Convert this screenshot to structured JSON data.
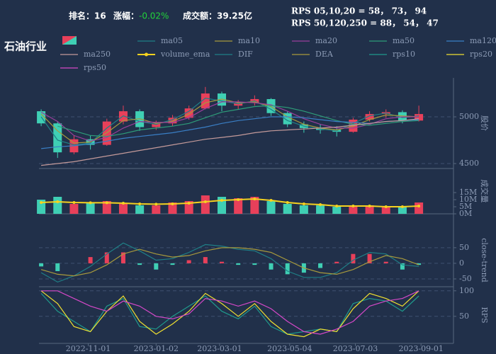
{
  "header": {
    "title": "石油行业",
    "rank": "排名：16",
    "change_label": "涨幅：",
    "change": "-0.02%",
    "turnover": "成交额：39.25亿",
    "rps_short": "RPS 05,10,20 = 58， 73， 94",
    "rps_long": "RPS 50,120,250 = 88， 54， 47"
  },
  "chart_data": [
    {
      "type": "candlestick",
      "x": [
        "2022-09-19",
        "2022-10-04",
        "2022-10-19",
        "2022-11-03",
        "2022-11-18",
        "2022-12-03",
        "2022-12-18",
        "2023-01-02",
        "2023-01-17",
        "2023-02-01",
        "2023-02-16",
        "2023-03-03",
        "2023-03-18",
        "2023-04-02",
        "2023-04-17",
        "2023-05-02",
        "2023-05-17",
        "2023-06-01",
        "2023-06-16",
        "2023-07-01",
        "2023-07-16",
        "2023-07-31",
        "2023-08-15",
        "2023-08-30"
      ],
      "open": [
        5060,
        4930,
        4620,
        4760,
        4700,
        4950,
        5060,
        4890,
        4930,
        4990,
        5090,
        5250,
        5120,
        5150,
        5190,
        5040,
        4920,
        4880,
        4860,
        4840,
        4970,
        5030,
        5050,
        4960
      ],
      "high": [
        5080,
        4950,
        4800,
        4800,
        4980,
        5120,
        5080,
        4960,
        5020,
        5120,
        5320,
        5270,
        5180,
        5230,
        5200,
        5060,
        4950,
        4920,
        4900,
        4990,
        5060,
        5080,
        5070,
        5120
      ],
      "low": [
        4900,
        4560,
        4600,
        4650,
        4690,
        4920,
        4850,
        4860,
        4900,
        4970,
        5080,
        5060,
        5080,
        5120,
        5010,
        4890,
        4830,
        4820,
        4790,
        4830,
        4950,
        4990,
        4930,
        4950
      ],
      "close": [
        4930,
        4620,
        4760,
        4700,
        4950,
        5060,
        4890,
        4930,
        4990,
        5090,
        5250,
        5120,
        5150,
        5190,
        5040,
        4920,
        4880,
        4860,
        4840,
        4970,
        5030,
        5050,
        4960,
        5030
      ],
      "up_color": "#e8405a",
      "down_color": "#3fcfb4",
      "series": [
        {
          "name": "ma05",
          "color": "#1f7f86",
          "values": [
            5000,
            4750,
            4700,
            4720,
            4880,
            5010,
            4950,
            4920,
            4970,
            5060,
            5200,
            5170,
            5140,
            5170,
            5080,
            4960,
            4900,
            4870,
            4850,
            4930,
            5010,
            5040,
            4990,
            5010
          ]
        },
        {
          "name": "ma10",
          "color": "#a89a3c",
          "values": [
            5030,
            4850,
            4720,
            4730,
            4830,
            4960,
            4980,
            4930,
            4950,
            5030,
            5150,
            5190,
            5150,
            5160,
            5110,
            5000,
            4920,
            4880,
            4860,
            4900,
            4970,
            5020,
            5010,
            5000
          ]
        },
        {
          "name": "ma20",
          "color": "#9a3f9c",
          "values": [
            5050,
            4950,
            4800,
            4740,
            4780,
            4880,
            4950,
            4940,
            4940,
            4990,
            5090,
            5160,
            5160,
            5150,
            5130,
            5060,
            4980,
            4920,
            4880,
            4880,
            4920,
            4980,
            5000,
            5000
          ]
        },
        {
          "name": "ma50",
          "color": "#2e9d79",
          "values": [
            null,
            4900,
            4850,
            4800,
            4790,
            4820,
            4860,
            4880,
            4900,
            4930,
            4990,
            5050,
            5080,
            5110,
            5120,
            5100,
            5060,
            5010,
            4960,
            4920,
            4910,
            4930,
            4950,
            4960
          ]
        },
        {
          "name": "ma120",
          "color": "#3a7fc6",
          "values": [
            4660,
            4680,
            4690,
            4710,
            4740,
            4770,
            4790,
            4810,
            4830,
            4860,
            4890,
            4930,
            4960,
            4980,
            5000,
            5000,
            4990,
            4970,
            4950,
            4940,
            4930,
            4950,
            4960,
            4970
          ]
        },
        {
          "name": "ma250",
          "color": "#c49a9a",
          "values": [
            4480,
            4500,
            4520,
            4550,
            4580,
            4610,
            4640,
            4670,
            4700,
            4730,
            4760,
            4780,
            4800,
            4830,
            4850,
            4860,
            4870,
            4880,
            4890,
            4910,
            4930,
            4950,
            4960,
            4980
          ]
        }
      ],
      "xlim": [
        "2022-09-17",
        "2023-09-08"
      ],
      "ylim": [
        4447,
        5417
      ],
      "yticks": [
        4500,
        5000
      ],
      "ylabel": "股价",
      "grid": true
    },
    {
      "type": "bar",
      "x": [
        "2022-09-19",
        "2022-10-04",
        "2022-10-19",
        "2022-11-03",
        "2022-11-18",
        "2022-12-03",
        "2022-12-18",
        "2023-01-02",
        "2023-01-17",
        "2023-02-01",
        "2023-02-16",
        "2023-03-03",
        "2023-03-18",
        "2023-04-02",
        "2023-04-17",
        "2023-05-02",
        "2023-05-17",
        "2023-06-01",
        "2023-06-16",
        "2023-07-01",
        "2023-07-16",
        "2023-07-31",
        "2023-08-15",
        "2023-08-30"
      ],
      "values": [
        10,
        12,
        7,
        8,
        9,
        7,
        6,
        6,
        8,
        9,
        13,
        12,
        11,
        12,
        9,
        7,
        6,
        6,
        5,
        6,
        6,
        5,
        5,
        8
      ],
      "series": [
        {
          "name": "volume_ema",
          "color": "#f5d21f",
          "values": [
            8,
            8.5,
            8,
            7.8,
            7.8,
            7.5,
            7,
            6.8,
            7,
            7.5,
            8.5,
            9.5,
            10,
            10.5,
            9.5,
            8,
            7,
            6.5,
            5.5,
            5.5,
            5.5,
            5,
            5,
            5.5
          ]
        }
      ],
      "xlim": [
        "2022-09-17",
        "2023-09-08"
      ],
      "ylim": [
        0,
        32
      ],
      "yticks": [
        {
          "value": 0,
          "label": "0M"
        },
        {
          "value": 5,
          "label": "5M"
        },
        {
          "value": 10,
          "label": "10M"
        },
        {
          "value": 15,
          "label": "15M"
        }
      ],
      "ylabel": "成交量"
    },
    {
      "type": "line",
      "x": [
        "2022-09-19",
        "2022-10-04",
        "2022-10-19",
        "2022-11-03",
        "2022-11-18",
        "2022-12-03",
        "2022-12-18",
        "2023-01-02",
        "2023-01-17",
        "2023-02-01",
        "2023-02-16",
        "2023-03-03",
        "2023-03-18",
        "2023-04-02",
        "2023-04-17",
        "2023-05-02",
        "2023-05-17",
        "2023-06-01",
        "2023-06-16",
        "2023-07-01",
        "2023-07-16",
        "2023-07-31",
        "2023-08-15",
        "2023-08-30"
      ],
      "series": [
        {
          "name": "DIF",
          "color": "#1f7f86",
          "values": [
            -30,
            -60,
            -40,
            -10,
            30,
            65,
            40,
            10,
            15,
            35,
            60,
            55,
            45,
            40,
            15,
            -25,
            -45,
            -45,
            -30,
            10,
            35,
            30,
            -5,
            -10
          ]
        },
        {
          "name": "DEA",
          "color": "#a89a3c",
          "values": [
            -20,
            -35,
            -40,
            -30,
            -5,
            30,
            45,
            30,
            20,
            25,
            40,
            50,
            50,
            45,
            35,
            10,
            -15,
            -30,
            -35,
            -20,
            5,
            25,
            15,
            -5
          ]
        }
      ],
      "histogram": {
        "up_color": "#e8405a",
        "down_color": "#3fcfb4",
        "values": [
          -10,
          -25,
          0,
          20,
          35,
          35,
          -5,
          -20,
          -5,
          10,
          20,
          5,
          -5,
          -5,
          -20,
          -35,
          -30,
          -15,
          5,
          30,
          30,
          5,
          -20,
          -5
        ]
      },
      "xlim": [
        "2022-09-17",
        "2023-09-08"
      ],
      "ylim": [
        -75,
        95
      ],
      "yticks": [
        -50,
        0,
        50
      ],
      "ylabel": "close-trend"
    },
    {
      "type": "line",
      "x": [
        "2022-09-19",
        "2022-10-04",
        "2022-10-19",
        "2022-11-03",
        "2022-11-18",
        "2022-12-03",
        "2022-12-18",
        "2023-01-02",
        "2023-01-17",
        "2023-02-01",
        "2023-02-16",
        "2023-03-03",
        "2023-03-18",
        "2023-04-02",
        "2023-04-17",
        "2023-05-02",
        "2023-05-17",
        "2023-06-01",
        "2023-06-16",
        "2023-07-01",
        "2023-07-16",
        "2023-07-31",
        "2023-08-15",
        "2023-08-30"
      ],
      "series": [
        {
          "name": "rps10",
          "color": "#1f9a8c",
          "values": [
            95,
            60,
            40,
            20,
            70,
            85,
            30,
            25,
            50,
            70,
            90,
            60,
            45,
            70,
            30,
            15,
            20,
            25,
            20,
            75,
            85,
            80,
            60,
            90
          ]
        },
        {
          "name": "rps20",
          "color": "#f0e030",
          "values": [
            100,
            75,
            30,
            20,
            60,
            90,
            40,
            15,
            35,
            60,
            95,
            75,
            50,
            75,
            40,
            15,
            10,
            25,
            20,
            65,
            95,
            85,
            70,
            100
          ]
        },
        {
          "name": "rps50",
          "color": "#d548c8",
          "values": [
            100,
            100,
            85,
            70,
            60,
            80,
            70,
            50,
            45,
            55,
            85,
            80,
            70,
            80,
            65,
            40,
            20,
            15,
            25,
            40,
            70,
            80,
            85,
            100
          ]
        }
      ],
      "xlim": [
        "2022-09-17",
        "2023-09-08"
      ],
      "ylim": [
        -3,
        108
      ],
      "yticks": [
        50,
        100
      ],
      "ylabel": "RPS",
      "xticks": [
        "2022-11-01",
        "2023-01-02",
        "2023-03-01",
        "2023-05-04",
        "2023-07-03",
        "2023-09-01"
      ]
    }
  ]
}
